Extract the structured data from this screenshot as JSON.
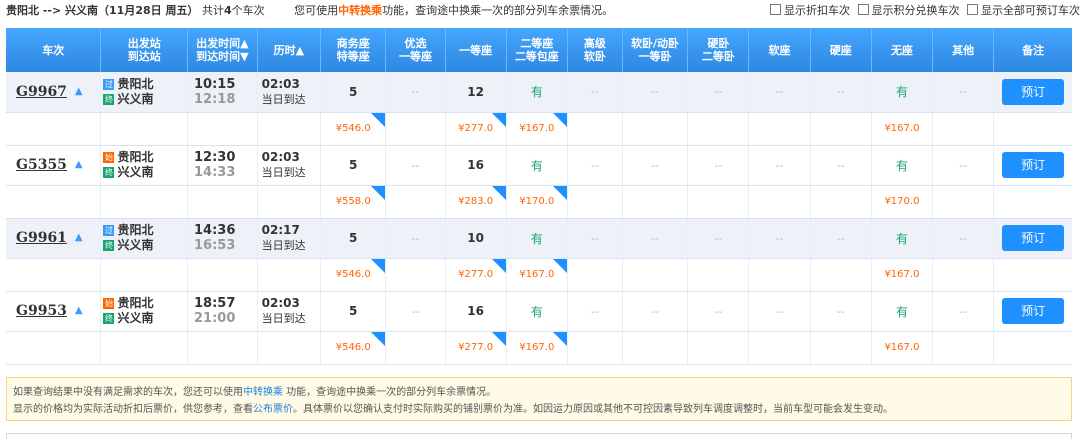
{
  "header": {
    "route": "贵阳北 --> 兴义南（11月28日 周五）",
    "count_prefix": "共计",
    "count": "4",
    "count_suffix": "个车次",
    "tip_pre": "您可使用",
    "tip_link": "中转换乘",
    "tip_post": "功能，查询途中换乘一次的部分列车余票情况。",
    "opt1": "显示折扣车次",
    "opt2": "显示积分兑换车次",
    "opt3": "显示全部可预订车次"
  },
  "columns": {
    "train": "车次",
    "station_1": "出发站",
    "station_2": "到达站",
    "time_1": "出发时间▲",
    "time_2": "到达时间▼",
    "duration": "历时▲",
    "business_1": "商务座",
    "business_2": "特等座",
    "premium_1": "优选",
    "premium_2": "一等座",
    "first": "一等座",
    "second_1": "二等座",
    "second_2": "二等包座",
    "soft_adv_1": "高级",
    "soft_adv_2": "软卧",
    "soft_1": "软卧/动卧",
    "soft_2": "一等卧",
    "hard_sleep_1": "硬卧",
    "hard_sleep_2": "二等卧",
    "soft_seat": "软座",
    "hard_seat": "硬座",
    "no_seat": "无座",
    "other": "其他",
    "note": "备注"
  },
  "trains": [
    {
      "no": "G9967",
      "from_badge": "过",
      "from": "贵阳北",
      "to_badge": "终",
      "to": "兴义南",
      "dep": "10:15",
      "arr": "12:18",
      "dur": "02:03",
      "arrive_day": "当日到达",
      "business": "5",
      "premium": "--",
      "first": "12",
      "second": "有",
      "soft_adv": "--",
      "soft": "--",
      "hard_sleep": "--",
      "soft_seat": "--",
      "hard_seat": "--",
      "no_seat": "有",
      "other": "--",
      "book": "预订",
      "price_business": "¥546.0",
      "price_first": "¥277.0",
      "price_second": "¥167.0",
      "price_noseat": "¥167.0"
    },
    {
      "no": "G5355",
      "from_badge": "始",
      "from": "贵阳北",
      "to_badge": "终",
      "to": "兴义南",
      "dep": "12:30",
      "arr": "14:33",
      "dur": "02:03",
      "arrive_day": "当日到达",
      "business": "5",
      "premium": "--",
      "first": "16",
      "second": "有",
      "soft_adv": "--",
      "soft": "--",
      "hard_sleep": "--",
      "soft_seat": "--",
      "hard_seat": "--",
      "no_seat": "有",
      "other": "--",
      "book": "预订",
      "price_business": "¥558.0",
      "price_first": "¥283.0",
      "price_second": "¥170.0",
      "price_noseat": "¥170.0"
    },
    {
      "no": "G9961",
      "from_badge": "过",
      "from": "贵阳北",
      "to_badge": "终",
      "to": "兴义南",
      "dep": "14:36",
      "arr": "16:53",
      "dur": "02:17",
      "arrive_day": "当日到达",
      "business": "5",
      "premium": "--",
      "first": "10",
      "second": "有",
      "soft_adv": "--",
      "soft": "--",
      "hard_sleep": "--",
      "soft_seat": "--",
      "hard_seat": "--",
      "no_seat": "有",
      "other": "--",
      "book": "预订",
      "price_business": "¥546.0",
      "price_first": "¥277.0",
      "price_second": "¥167.0",
      "price_noseat": "¥167.0"
    },
    {
      "no": "G9953",
      "from_badge": "始",
      "from": "贵阳北",
      "to_badge": "终",
      "to": "兴义南",
      "dep": "18:57",
      "arr": "21:00",
      "dur": "02:03",
      "arrive_day": "当日到达",
      "business": "5",
      "premium": "--",
      "first": "16",
      "second": "有",
      "soft_adv": "--",
      "soft": "--",
      "hard_sleep": "--",
      "soft_seat": "--",
      "hard_seat": "--",
      "no_seat": "有",
      "other": "--",
      "book": "预订",
      "price_business": "¥546.0",
      "price_first": "¥277.0",
      "price_second": "¥167.0",
      "price_noseat": "¥167.0"
    }
  ],
  "notice": {
    "line1_pre": "如果查询结果中没有满足需求的车次，您还可以使用",
    "line1_link": "中转换乘",
    "line1_post": " 功能，查询途中换乘一次的部分列车余票情况。",
    "line2_pre": "显示的价格均为实际活动折扣后票价，供您参考，查看",
    "line2_link": "公布票价",
    "line2_post": "。具体票价以您确认支付时实际购买的铺别票价为准。如因运力原因或其他不可控因素导致列车调度调整时，当前车型可能会发生变动。"
  }
}
